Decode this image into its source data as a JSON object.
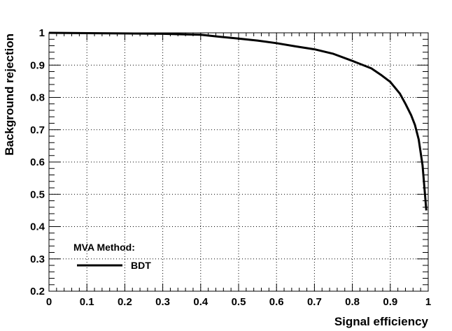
{
  "chart_data": {
    "type": "line",
    "xlabel": "Signal efficiency",
    "ylabel": "Background rejection",
    "xlim": [
      0,
      1
    ],
    "ylim": [
      0.2,
      1
    ],
    "grid": true,
    "x_ticks": [
      "0",
      "0.1",
      "0.2",
      "0.3",
      "0.4",
      "0.5",
      "0.6",
      "0.7",
      "0.8",
      "0.9",
      "1"
    ],
    "y_ticks": [
      "0.2",
      "0.3",
      "0.4",
      "0.5",
      "0.6",
      "0.7",
      "0.8",
      "0.9",
      "1"
    ],
    "legend": {
      "title": "MVA Method:",
      "placement": "bottom-left",
      "entries": [
        "BDT"
      ]
    },
    "series": [
      {
        "name": "BDT",
        "color": "#000000",
        "x": [
          0.0,
          0.2,
          0.3,
          0.4,
          0.45,
          0.5,
          0.55,
          0.6,
          0.65,
          0.7,
          0.75,
          0.8,
          0.85,
          0.875,
          0.9,
          0.925,
          0.94,
          0.955,
          0.965,
          0.975,
          0.985,
          0.99,
          0.995
        ],
        "y": [
          1.0,
          0.998,
          0.997,
          0.994,
          0.988,
          0.982,
          0.976,
          0.968,
          0.958,
          0.949,
          0.935,
          0.913,
          0.89,
          0.87,
          0.848,
          0.812,
          0.78,
          0.745,
          0.715,
          0.67,
          0.59,
          0.52,
          0.45
        ]
      }
    ]
  }
}
